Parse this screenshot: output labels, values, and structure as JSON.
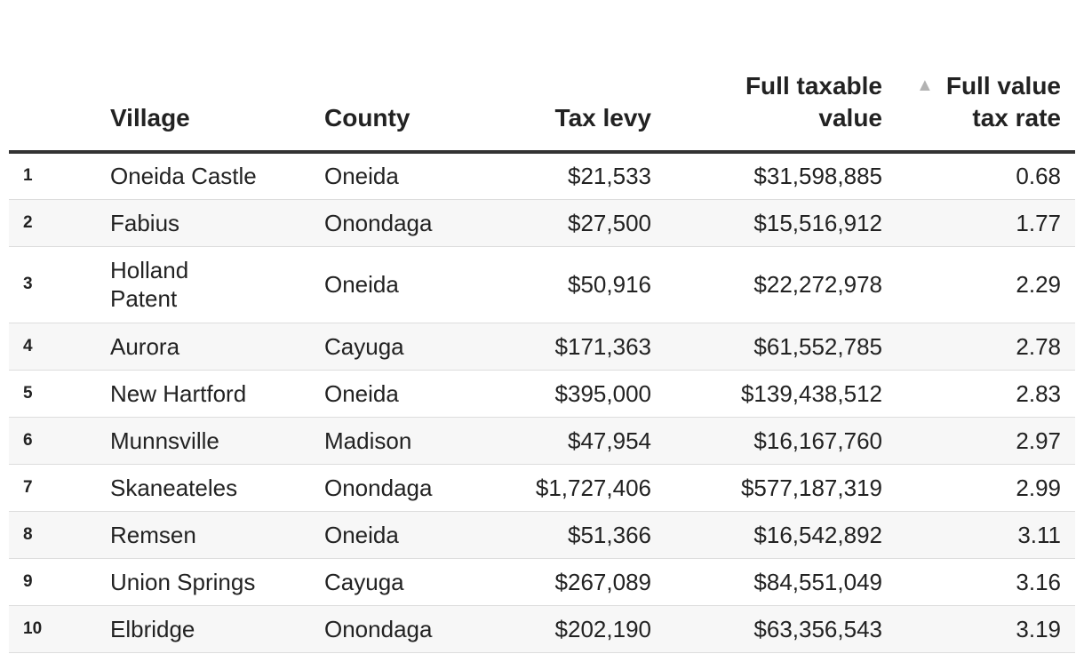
{
  "table": {
    "headers": {
      "rank": "",
      "village": "Village",
      "county": "County",
      "tax_levy": "Tax levy",
      "full_taxable_value": "Full taxable value",
      "full_value_tax_rate": "Full value tax rate"
    },
    "sort_icon": "sort-ascending-triangle",
    "sort_glyph": "▲",
    "rows": [
      {
        "rank": "1",
        "village": "Oneida Castle",
        "county": "Oneida",
        "tax_levy": "$21,533",
        "full_taxable_value": "$31,598,885",
        "rate": "0.68"
      },
      {
        "rank": "2",
        "village": "Fabius",
        "county": "Onondaga",
        "tax_levy": "$27,500",
        "full_taxable_value": "$15,516,912",
        "rate": "1.77"
      },
      {
        "rank": "3",
        "village": "Holland Patent",
        "county": "Oneida",
        "tax_levy": "$50,916",
        "full_taxable_value": "$22,272,978",
        "rate": "2.29"
      },
      {
        "rank": "4",
        "village": "Aurora",
        "county": "Cayuga",
        "tax_levy": "$171,363",
        "full_taxable_value": "$61,552,785",
        "rate": "2.78"
      },
      {
        "rank": "5",
        "village": "New Hartford",
        "county": "Oneida",
        "tax_levy": "$395,000",
        "full_taxable_value": "$139,438,512",
        "rate": "2.83"
      },
      {
        "rank": "6",
        "village": "Munnsville",
        "county": "Madison",
        "tax_levy": "$47,954",
        "full_taxable_value": "$16,167,760",
        "rate": "2.97"
      },
      {
        "rank": "7",
        "village": "Skaneateles",
        "county": "Onondaga",
        "tax_levy": "$1,727,406",
        "full_taxable_value": "$577,187,319",
        "rate": "2.99"
      },
      {
        "rank": "8",
        "village": "Remsen",
        "county": "Oneida",
        "tax_levy": "$51,366",
        "full_taxable_value": "$16,542,892",
        "rate": "3.11"
      },
      {
        "rank": "9",
        "village": "Union Springs",
        "county": "Cayuga",
        "tax_levy": "$267,089",
        "full_taxable_value": "$84,551,049",
        "rate": "3.16"
      },
      {
        "rank": "10",
        "village": "Elbridge",
        "county": "Onondaga",
        "tax_levy": "$202,190",
        "full_taxable_value": "$63,356,543",
        "rate": "3.19"
      }
    ]
  }
}
